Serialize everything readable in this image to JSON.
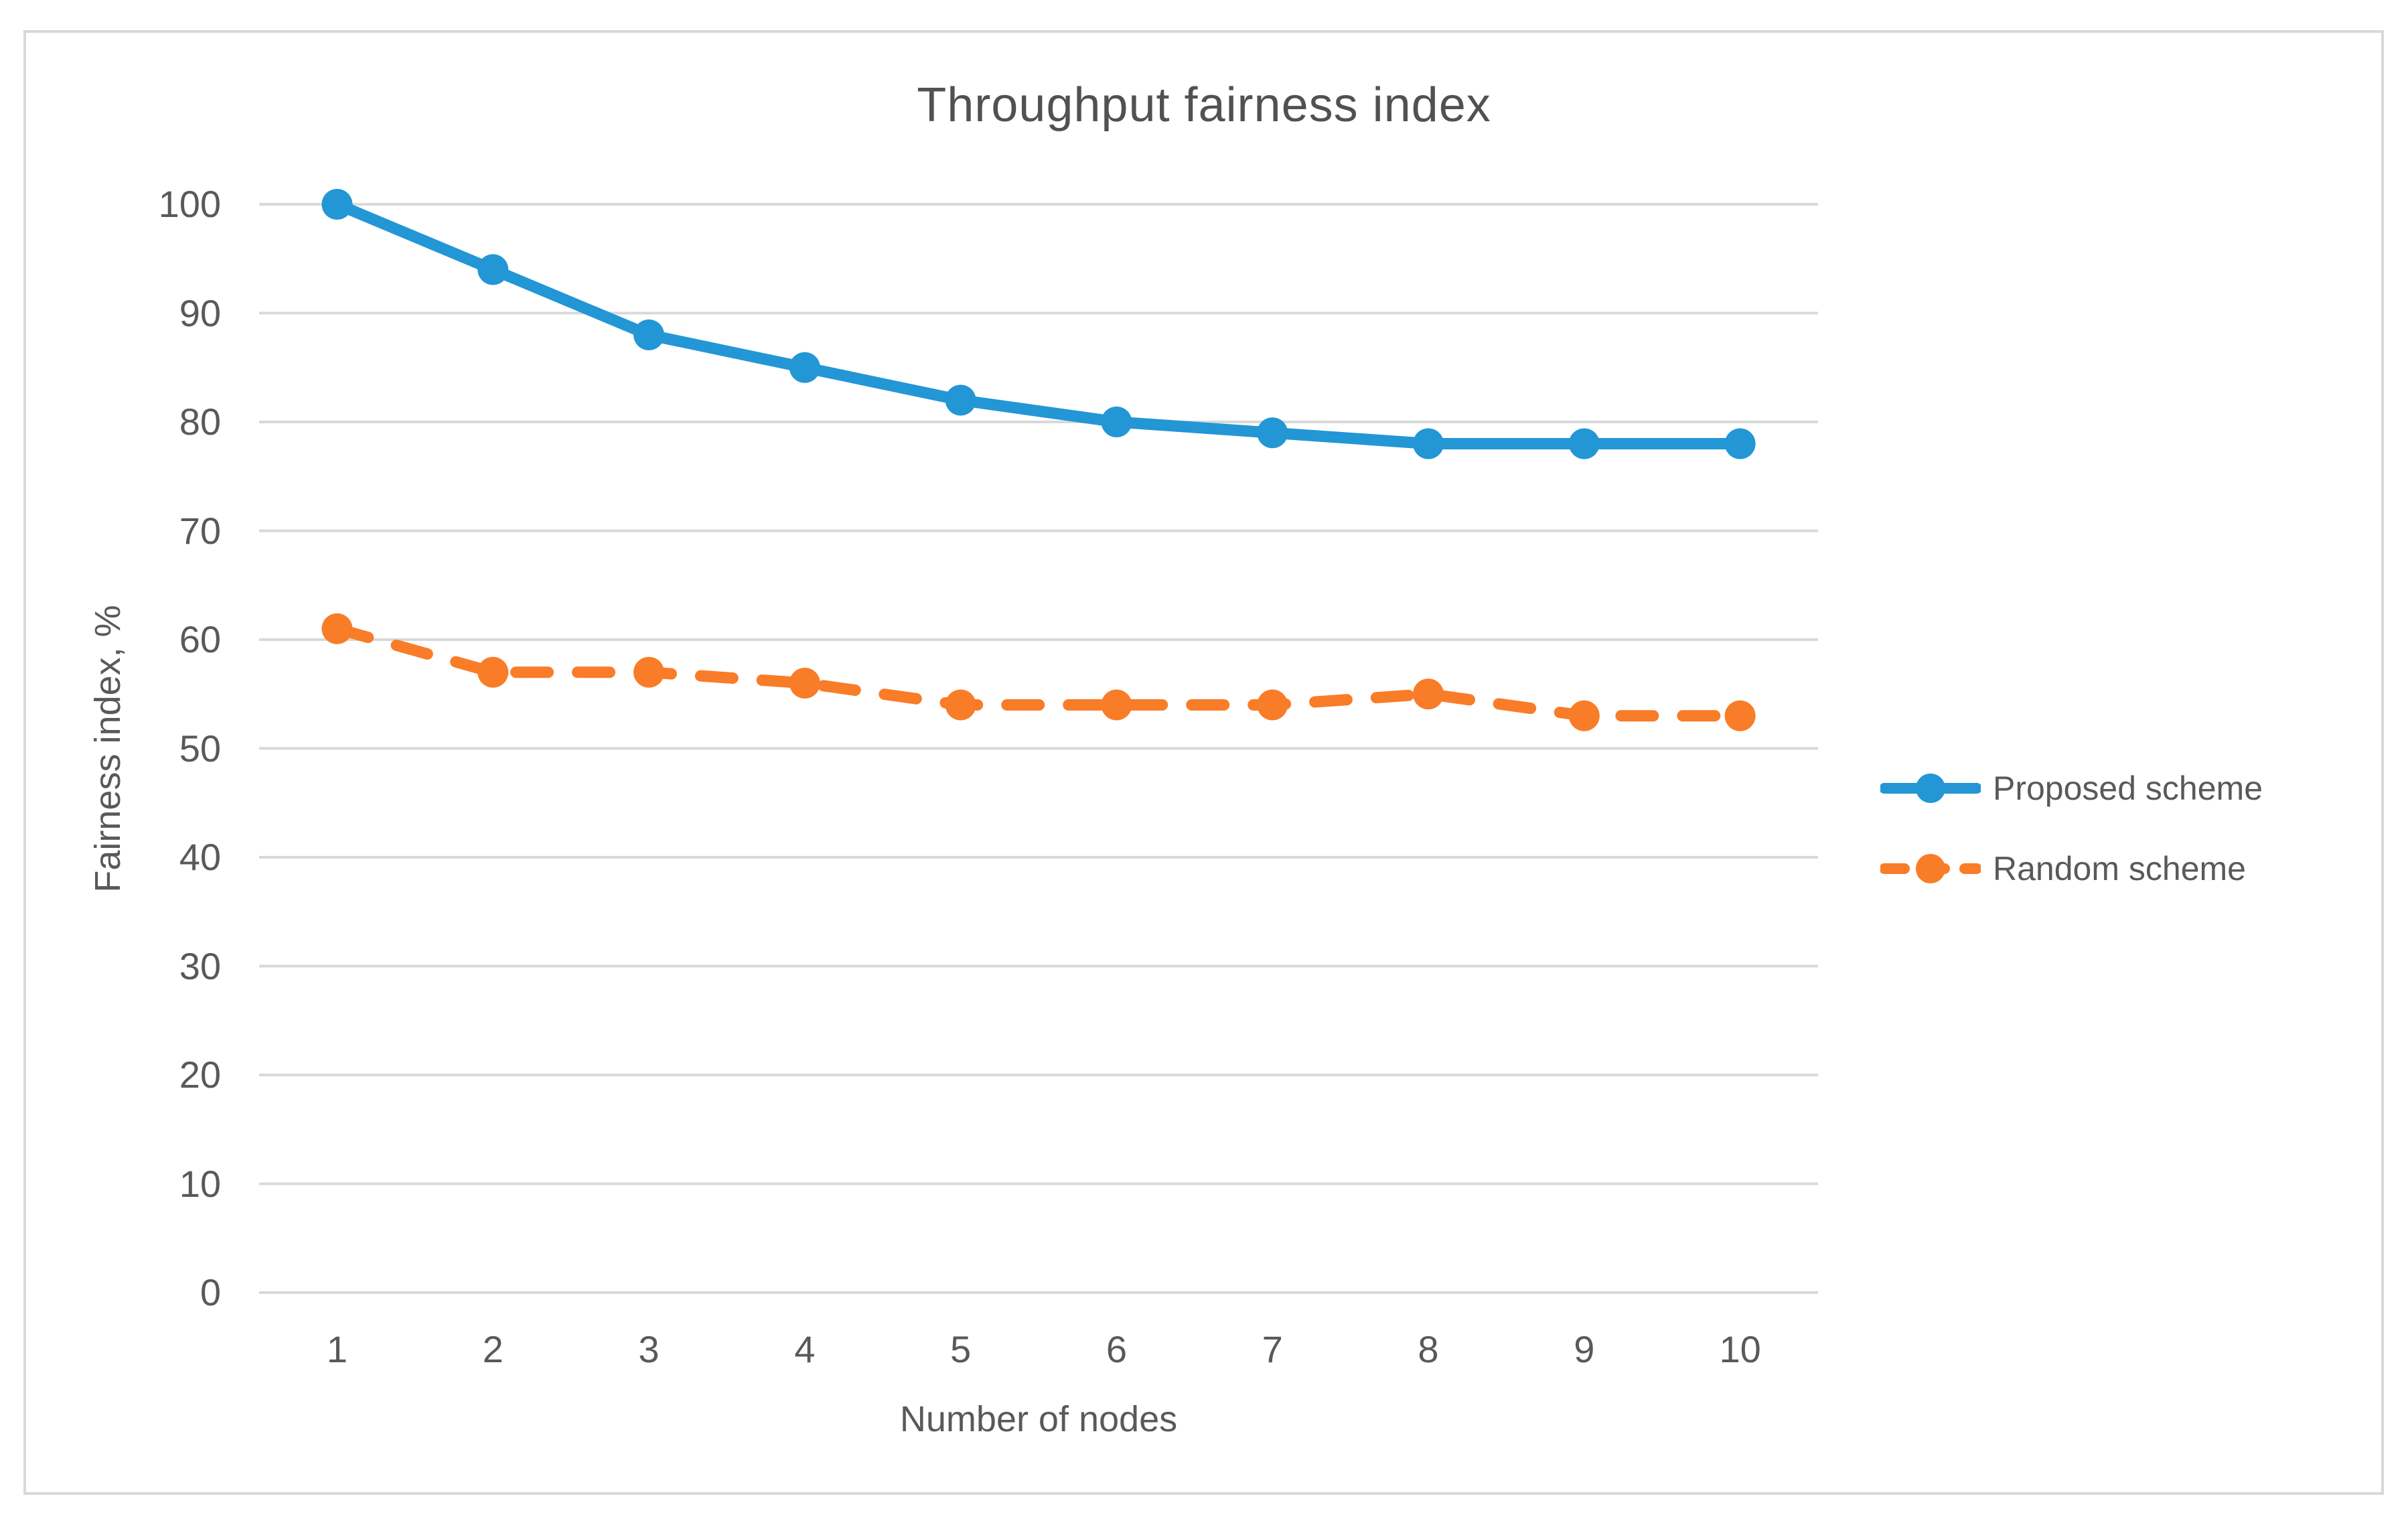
{
  "page": {
    "background_color": "#ffffff",
    "frame_color": "#d8d8d8",
    "text_color": "#595959",
    "grid_color": "#d9d9d9"
  },
  "chart_data": {
    "type": "line",
    "title": "Throughput fairness index",
    "xlabel": "Number of nodes",
    "ylabel": "Fairness index, %",
    "categories": [
      "1",
      "2",
      "3",
      "4",
      "5",
      "6",
      "7",
      "8",
      "9",
      "10"
    ],
    "y_ticks": [
      0,
      10,
      20,
      30,
      40,
      50,
      60,
      70,
      80,
      90,
      100
    ],
    "ylim": [
      0,
      100
    ],
    "grid": true,
    "legend_position": "right",
    "series": [
      {
        "name": "Proposed scheme",
        "color": "#2396d5",
        "line_style": "solid",
        "marker": "circle",
        "values": [
          100,
          94,
          88,
          85,
          82,
          80,
          79,
          78,
          78,
          78
        ]
      },
      {
        "name": "Random scheme",
        "color": "#f97c28",
        "line_style": "dashed",
        "marker": "circle",
        "values": [
          61,
          57,
          57,
          56,
          54,
          54,
          54,
          55,
          53,
          53
        ]
      }
    ]
  }
}
